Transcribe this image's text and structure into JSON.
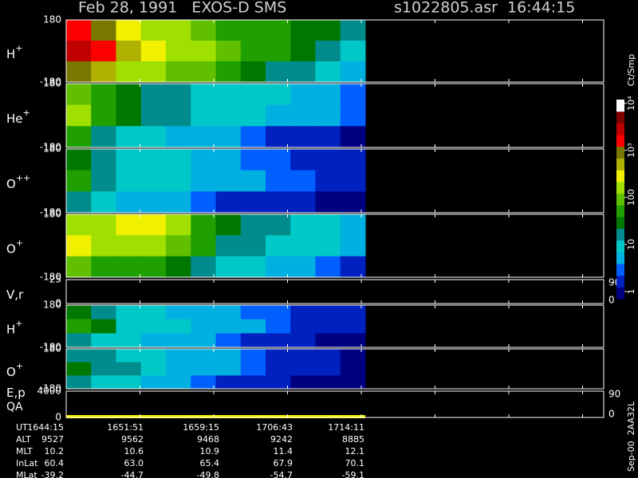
{
  "header": {
    "title": "Feb 28, 1991   EXOS-D SMS",
    "file": "s1022805.asr  16:44:15"
  },
  "panels": [
    {
      "type": "spectrogram",
      "label": "H",
      "sup": "+",
      "ylim": [
        -180,
        180
      ],
      "yticks": [
        -180,
        180
      ],
      "values": [
        [
          1500,
          800,
          300,
          200,
          150,
          100,
          60,
          50,
          40,
          30,
          25,
          15
        ],
        [
          2500,
          1500,
          500,
          300,
          200,
          150,
          100,
          60,
          40,
          30,
          20,
          12
        ],
        [
          1200,
          600,
          200,
          150,
          100,
          80,
          50,
          30,
          20,
          15,
          10,
          5
        ]
      ]
    },
    {
      "type": "spectrogram",
      "label": "He",
      "sup": "+",
      "ylim": [
        -180,
        180
      ],
      "yticks": [
        -180,
        180
      ],
      "values": [
        [
          100,
          40,
          30,
          20,
          15,
          12,
          10,
          10,
          8,
          6,
          5,
          3
        ],
        [
          150,
          50,
          30,
          20,
          15,
          12,
          10,
          8,
          6,
          5,
          4,
          3
        ],
        [
          60,
          15,
          10,
          8,
          6,
          5,
          4,
          3,
          2,
          2,
          1.5,
          1
        ]
      ]
    },
    {
      "type": "spectrogram",
      "label": "O",
      "sup": "++",
      "ylim": [
        -180,
        180
      ],
      "yticks": [
        -180,
        180
      ],
      "values": [
        [
          30,
          15,
          12,
          10,
          8,
          6,
          4,
          3,
          3,
          2,
          2,
          1.5
        ],
        [
          40,
          15,
          12,
          10,
          8,
          6,
          5,
          4,
          3,
          3,
          2,
          2
        ],
        [
          20,
          8,
          6,
          5,
          4,
          3,
          2,
          2,
          1.5,
          1.5,
          1,
          1
        ]
      ]
    },
    {
      "type": "spectrogram",
      "label": "O",
      "sup": "+",
      "ylim": [
        -180,
        180
      ],
      "yticks": [
        -180,
        180
      ],
      "values": [
        [
          200,
          150,
          250,
          300,
          150,
          60,
          30,
          20,
          15,
          12,
          10,
          6
        ],
        [
          300,
          200,
          200,
          200,
          100,
          40,
          20,
          15,
          12,
          10,
          8,
          5
        ],
        [
          100,
          60,
          60,
          50,
          30,
          15,
          10,
          8,
          5,
          4,
          3,
          2
        ]
      ]
    },
    {
      "type": "line",
      "label": "V,r",
      "ylim": [
        0,
        25
      ],
      "yticks": [
        0,
        25
      ],
      "y2lim": [
        0,
        90
      ],
      "y2ticks": [
        0,
        90
      ]
    },
    {
      "type": "spectrogram",
      "label": "H",
      "sup": "+",
      "ylim": [
        -180,
        180
      ],
      "yticks": [
        -180,
        180
      ],
      "values": [
        [
          30,
          20,
          10,
          8,
          6,
          5,
          4,
          3,
          3,
          2,
          2,
          1.5
        ],
        [
          40,
          25,
          12,
          10,
          8,
          6,
          5,
          4,
          3,
          2,
          2,
          1.5
        ],
        [
          20,
          12,
          8,
          6,
          5,
          4,
          3,
          2,
          2,
          1.5,
          1,
          1
        ]
      ]
    },
    {
      "type": "spectrogram",
      "label": "O",
      "sup": "+",
      "ylim": [
        -180,
        180
      ],
      "yticks": [
        -180,
        180
      ],
      "values": [
        [
          20,
          15,
          12,
          10,
          6,
          5,
          4,
          3,
          2,
          2,
          1.5,
          1
        ],
        [
          25,
          20,
          15,
          10,
          6,
          5,
          4,
          3,
          2,
          2,
          1.5,
          1
        ],
        [
          15,
          10,
          8,
          5,
          4,
          3,
          2,
          2,
          1.5,
          1,
          1,
          1
        ]
      ]
    },
    {
      "type": "line",
      "label": "E,p",
      "label2": "QA",
      "ylim": [
        0,
        4000
      ],
      "yticks": [
        0,
        4000
      ],
      "y2lim": [
        0,
        90
      ],
      "y2ticks": [
        0,
        90
      ]
    }
  ],
  "colorbar": {
    "label": "Ct/Smp",
    "lim": [
      0.7,
      12000
    ],
    "log": true,
    "ticks": [
      1,
      10,
      100,
      {
        "value": 1000,
        "label": "10³"
      },
      {
        "value": 10000,
        "label": "10⁴"
      }
    ],
    "colors": [
      "#000080",
      "#0020c0",
      "#0060ff",
      "#00b0e0",
      "#00c8c8",
      "#008c8c",
      "#007800",
      "#20a000",
      "#60c000",
      "#a0e000",
      "#f0f000",
      "#b0b000",
      "#787800",
      "#ff0000",
      "#c00000",
      "#800000",
      "#ffffff"
    ]
  },
  "info": {
    "rows": [
      {
        "label": "UT",
        "values": [
          "1644:15",
          "1651:51",
          "1659:15",
          "1706:43",
          "1714:11"
        ]
      },
      {
        "label": "ALT",
        "values": [
          9527,
          9562,
          9468,
          9242,
          8885
        ]
      },
      {
        "label": "MLT",
        "values": [
          10.2,
          10.6,
          10.9,
          11.4,
          12.1
        ]
      },
      {
        "label": "InLat",
        "values": [
          60.4,
          "63.0",
          65.4,
          67.9,
          70.1
        ]
      },
      {
        "label": "MLat",
        "values": [
          -39.2,
          -44.7,
          -49.8,
          -54.7,
          -59.1
        ]
      }
    ]
  },
  "footer": "Sep-00  2AA32L"
}
